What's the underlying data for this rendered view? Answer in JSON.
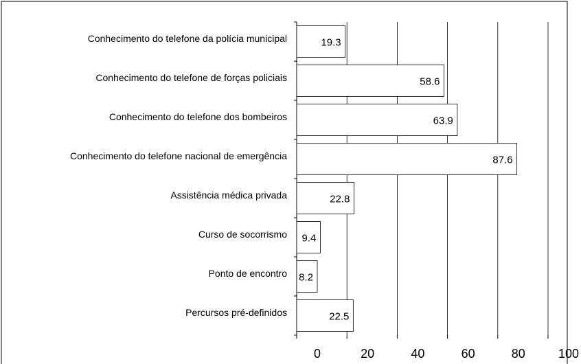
{
  "chart_data": {
    "type": "barh",
    "categories": [
      "Conhecimento do telefone da polícia municipal",
      "Conhecimento do telefone de forças policiais",
      "Conhecimento do telefone dos bombeiros",
      "Conhecimento do telefone nacional de emergência",
      "Assistência médica privada",
      "Curso de socorrismo",
      "Ponto de encontro",
      "Percursos pré-definidos"
    ],
    "values": [
      19.3,
      58.6,
      63.9,
      87.6,
      22.8,
      9.4,
      8.2,
      22.5
    ],
    "color": "#ffffff",
    "xlim": [
      0,
      100
    ],
    "xticks": [
      0,
      20,
      40,
      60,
      80,
      100
    ],
    "grid": true
  }
}
